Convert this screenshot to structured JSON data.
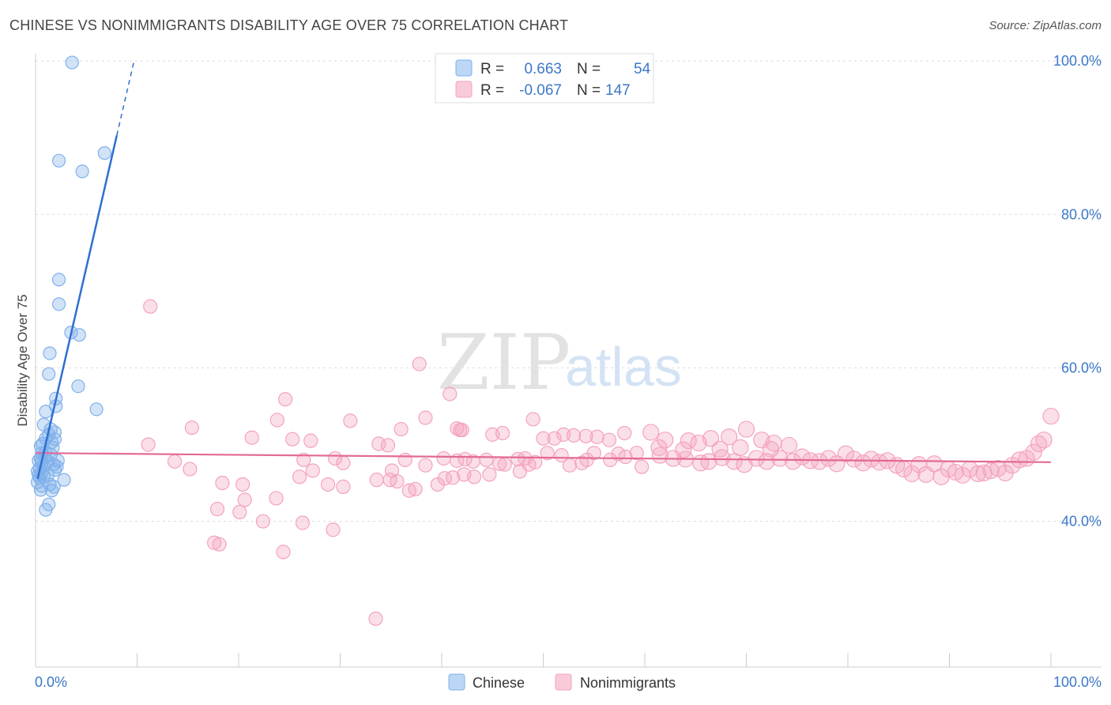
{
  "chart_data": {
    "type": "scatter",
    "title": "CHINESE VS NONIMMIGRANTS DISABILITY AGE OVER 75 CORRELATION CHART",
    "source": "Source: ZipAtlas.com",
    "xlabel": "",
    "ylabel": "Disability Age Over 75",
    "xlim": [
      0,
      100
    ],
    "ylim": [
      21,
      103
    ],
    "x_tick_labels": [
      "0.0%",
      "100.0%"
    ],
    "y_ticks": [
      {
        "value": 40,
        "label": "40.0%"
      },
      {
        "value": 60,
        "label": "60.0%"
      },
      {
        "value": 80,
        "label": "80.0%"
      },
      {
        "value": 100,
        "label": "100.0%"
      }
    ],
    "legend": {
      "rows": [
        {
          "series": "Chinese",
          "r_label": "R =",
          "r_value": "0.663",
          "n_label": "N =",
          "n_value": "54"
        },
        {
          "series": "Nonimmigrants",
          "r_label": "R =",
          "r_value": "-0.067",
          "n_label": "N =",
          "n_value": "147"
        }
      ]
    },
    "watermark": {
      "zip": "ZIP",
      "atlas": "atlas"
    },
    "series": [
      {
        "name": "Chinese",
        "color": "#7fb0ea",
        "line_color": "#2f6fd0",
        "trend": {
          "x0": 0.2,
          "y0": 45.5,
          "x1": 8.0,
          "y1": 90.3,
          "dash_x1": 9.7,
          "dash_y1": 100.0
        },
        "points": [
          [
            3.6,
            99.8
          ],
          [
            2.3,
            87.0
          ],
          [
            4.6,
            85.6
          ],
          [
            6.8,
            88.0
          ],
          [
            2.3,
            71.5
          ],
          [
            2.3,
            68.3
          ],
          [
            3.5,
            64.6
          ],
          [
            4.3,
            64.3
          ],
          [
            1.4,
            61.9
          ],
          [
            1.3,
            59.2
          ],
          [
            4.2,
            57.6
          ],
          [
            6.0,
            54.6
          ],
          [
            2.0,
            56.0
          ],
          [
            2.0,
            55.0
          ],
          [
            1.0,
            54.3
          ],
          [
            0.8,
            52.6
          ],
          [
            1.5,
            52.0
          ],
          [
            1.9,
            51.6
          ],
          [
            1.3,
            51.3
          ],
          [
            1.0,
            50.8
          ],
          [
            1.9,
            50.7
          ],
          [
            1.6,
            50.3
          ],
          [
            0.7,
            50.1
          ],
          [
            0.5,
            49.8
          ],
          [
            1.7,
            49.6
          ],
          [
            1.0,
            49.0
          ],
          [
            0.6,
            48.9
          ],
          [
            1.5,
            48.7
          ],
          [
            0.9,
            48.3
          ],
          [
            0.5,
            48.2
          ],
          [
            0.3,
            47.9
          ],
          [
            0.6,
            47.7
          ],
          [
            1.2,
            47.8
          ],
          [
            2.2,
            47.9
          ],
          [
            1.8,
            47.4
          ],
          [
            2.1,
            47.1
          ],
          [
            0.8,
            47.2
          ],
          [
            0.4,
            46.9
          ],
          [
            1.9,
            46.7
          ],
          [
            0.2,
            46.5
          ],
          [
            0.6,
            46.3
          ],
          [
            1.2,
            46.0
          ],
          [
            0.4,
            45.7
          ],
          [
            0.8,
            45.8
          ],
          [
            2.8,
            45.4
          ],
          [
            0.2,
            45.1
          ],
          [
            0.6,
            44.6
          ],
          [
            1.4,
            44.8
          ],
          [
            1.8,
            44.5
          ],
          [
            0.5,
            44.1
          ],
          [
            1.6,
            44.0
          ],
          [
            1.3,
            42.2
          ],
          [
            1.0,
            41.5
          ],
          [
            0.3,
            46.0
          ]
        ]
      },
      {
        "name": "Nonimmigrants",
        "color": "#f4a3bc",
        "line_color": "#e26a95",
        "trend": {
          "x0": 0,
          "y0": 48.9,
          "x1": 100,
          "y1": 47.7
        },
        "points": [
          [
            11.3,
            68.0
          ],
          [
            37.8,
            60.5
          ],
          [
            40.8,
            56.6
          ],
          [
            24.6,
            55.9
          ],
          [
            38.4,
            53.5
          ],
          [
            23.8,
            53.2
          ],
          [
            31.0,
            53.1
          ],
          [
            36.0,
            52.0
          ],
          [
            21.3,
            50.9
          ],
          [
            11.1,
            50.0
          ],
          [
            25.3,
            50.7
          ],
          [
            27.1,
            50.5
          ],
          [
            33.8,
            50.1
          ],
          [
            34.7,
            49.9
          ],
          [
            41.5,
            52.1
          ],
          [
            41.8,
            51.9
          ],
          [
            42.0,
            51.9
          ],
          [
            45.0,
            51.3
          ],
          [
            46.0,
            51.5
          ],
          [
            49.0,
            53.3
          ],
          [
            52.0,
            51.3
          ],
          [
            51.1,
            50.8
          ],
          [
            50.0,
            50.8
          ],
          [
            53.0,
            51.2
          ],
          [
            54.2,
            51.1
          ],
          [
            55.3,
            51.0
          ],
          [
            56.5,
            50.6
          ],
          [
            58.0,
            51.5
          ],
          [
            60.6,
            51.6
          ],
          [
            62.0,
            50.6
          ],
          [
            64.3,
            50.5
          ],
          [
            65.3,
            50.2
          ],
          [
            66.5,
            50.8
          ],
          [
            68.3,
            51.0
          ],
          [
            70.0,
            52.0
          ],
          [
            71.5,
            50.6
          ],
          [
            72.7,
            50.2
          ],
          [
            74.2,
            49.9
          ],
          [
            72.4,
            49.4
          ],
          [
            69.4,
            49.6
          ],
          [
            67.4,
            49.4
          ],
          [
            63.8,
            49.3
          ],
          [
            61.4,
            49.6
          ],
          [
            59.2,
            48.9
          ],
          [
            57.4,
            48.8
          ],
          [
            55.0,
            48.9
          ],
          [
            53.8,
            47.6
          ],
          [
            51.8,
            48.6
          ],
          [
            50.4,
            48.9
          ],
          [
            49.2,
            47.7
          ],
          [
            48.2,
            48.2
          ],
          [
            47.5,
            48.1
          ],
          [
            46.2,
            47.4
          ],
          [
            45.7,
            47.5
          ],
          [
            44.4,
            48.0
          ],
          [
            43.1,
            47.8
          ],
          [
            42.3,
            48.1
          ],
          [
            41.5,
            47.9
          ],
          [
            40.2,
            48.2
          ],
          [
            38.4,
            47.3
          ],
          [
            36.4,
            48.0
          ],
          [
            35.1,
            46.6
          ],
          [
            29.5,
            48.2
          ],
          [
            30.3,
            47.6
          ],
          [
            26.4,
            48.0
          ],
          [
            27.3,
            46.6
          ],
          [
            26.0,
            45.8
          ],
          [
            28.8,
            44.8
          ],
          [
            33.6,
            45.4
          ],
          [
            34.9,
            45.4
          ],
          [
            35.6,
            45.2
          ],
          [
            36.8,
            44.0
          ],
          [
            37.4,
            44.2
          ],
          [
            39.6,
            44.8
          ],
          [
            40.3,
            45.6
          ],
          [
            41.1,
            45.7
          ],
          [
            42.2,
            46.1
          ],
          [
            43.2,
            45.8
          ],
          [
            44.7,
            46.1
          ],
          [
            47.7,
            46.5
          ],
          [
            48.6,
            47.4
          ],
          [
            52.6,
            47.3
          ],
          [
            54.3,
            48.0
          ],
          [
            56.6,
            48.0
          ],
          [
            58.1,
            48.4
          ],
          [
            59.7,
            47.1
          ],
          [
            61.5,
            48.6
          ],
          [
            62.8,
            48.2
          ],
          [
            64.0,
            48.1
          ],
          [
            65.5,
            47.6
          ],
          [
            66.3,
            47.8
          ],
          [
            67.6,
            48.3
          ],
          [
            68.8,
            47.8
          ],
          [
            69.8,
            47.4
          ],
          [
            71.0,
            48.2
          ],
          [
            72.0,
            47.8
          ],
          [
            73.3,
            48.2
          ],
          [
            74.6,
            47.8
          ],
          [
            75.5,
            48.4
          ],
          [
            76.3,
            47.9
          ],
          [
            77.2,
            47.8
          ],
          [
            78.1,
            48.2
          ],
          [
            78.9,
            47.5
          ],
          [
            79.8,
            48.8
          ],
          [
            80.6,
            48.1
          ],
          [
            81.5,
            47.6
          ],
          [
            82.3,
            48.1
          ],
          [
            83.1,
            47.7
          ],
          [
            83.9,
            47.9
          ],
          [
            84.8,
            47.3
          ],
          [
            85.5,
            46.8
          ],
          [
            86.3,
            46.2
          ],
          [
            87.0,
            47.4
          ],
          [
            87.7,
            46.1
          ],
          [
            88.5,
            47.5
          ],
          [
            89.2,
            45.8
          ],
          [
            89.9,
            46.8
          ],
          [
            90.6,
            46.4
          ],
          [
            91.3,
            46.0
          ],
          [
            92.0,
            46.8
          ],
          [
            92.8,
            46.2
          ],
          [
            93.4,
            46.3
          ],
          [
            94.1,
            46.6
          ],
          [
            94.8,
            46.9
          ],
          [
            95.5,
            46.3
          ],
          [
            96.2,
            47.3
          ],
          [
            96.9,
            48.0
          ],
          [
            97.6,
            48.2
          ],
          [
            98.3,
            49.0
          ],
          [
            98.8,
            50.1
          ],
          [
            99.3,
            50.6
          ],
          [
            100.0,
            53.7
          ],
          [
            15.2,
            46.8
          ],
          [
            18.4,
            45.0
          ],
          [
            20.4,
            44.8
          ],
          [
            20.6,
            42.8
          ],
          [
            23.7,
            43.0
          ],
          [
            30.3,
            44.5
          ],
          [
            17.9,
            41.6
          ],
          [
            20.1,
            41.2
          ],
          [
            22.4,
            40.0
          ],
          [
            26.3,
            39.8
          ],
          [
            13.7,
            47.8
          ],
          [
            29.3,
            38.9
          ],
          [
            17.6,
            37.2
          ],
          [
            18.1,
            37.0
          ],
          [
            24.4,
            36.0
          ],
          [
            33.5,
            27.3
          ],
          [
            15.4,
            52.2
          ]
        ]
      }
    ]
  }
}
